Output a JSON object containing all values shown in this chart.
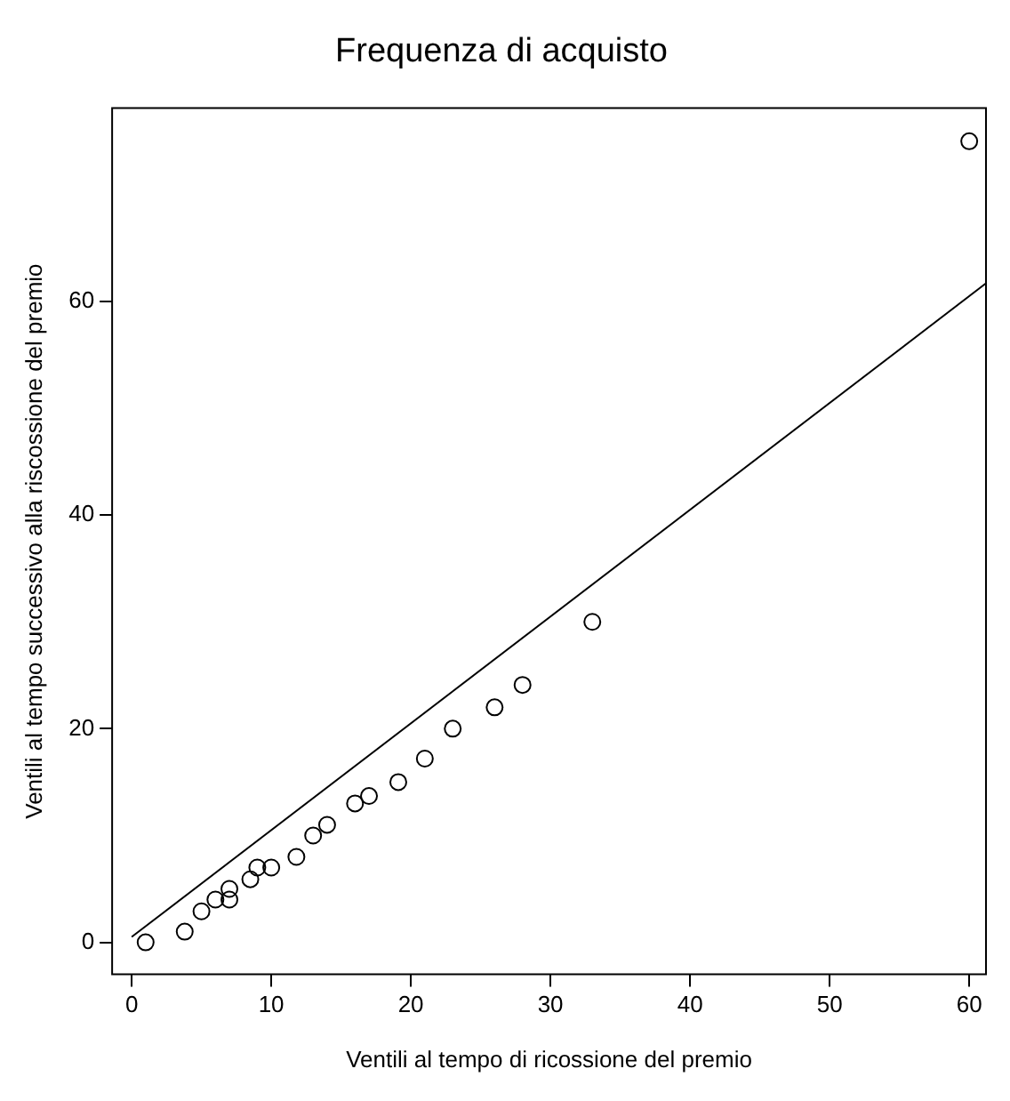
{
  "chart_data": {
    "type": "scatter",
    "title": "Frequenza di acquisto",
    "xlabel": "Ventili al tempo di ricossione del premio",
    "ylabel": "Ventili al tempo successivo alla riscossione del premio",
    "xlim": [
      -1.4,
      61.2
    ],
    "ylim": [
      -3,
      78.1
    ],
    "xticks": [
      0,
      10,
      20,
      30,
      40,
      50,
      60
    ],
    "yticks": [
      0,
      20,
      40,
      60
    ],
    "grid": false,
    "legend": false,
    "series": [
      {
        "type": "scatter",
        "color": "#000000",
        "marker": "circle",
        "x": [
          1,
          3.8,
          5,
          6,
          7,
          7,
          8.5,
          9,
          10,
          11.8,
          13,
          14,
          16,
          17,
          19.1,
          21,
          23,
          26,
          28,
          33,
          60
        ],
        "values": [
          0,
          1,
          2.9,
          4,
          4,
          5,
          5.9,
          7,
          7,
          8,
          10,
          11,
          13,
          13.7,
          15,
          17.2,
          20,
          22,
          24.1,
          30,
          75
        ]
      },
      {
        "type": "line",
        "color": "#000000",
        "marker": "none",
        "x": [
          0,
          61.2
        ],
        "values": [
          0.5,
          61.7
        ]
      }
    ]
  }
}
